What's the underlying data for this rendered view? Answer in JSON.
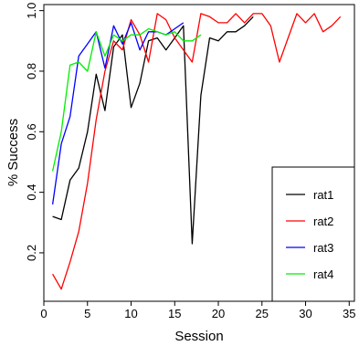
{
  "chart_data": {
    "type": "line",
    "title": "",
    "xlabel": "Session",
    "ylabel": "% Success",
    "xlim": [
      0,
      35.6
    ],
    "ylim": [
      0.04,
      1.02
    ],
    "x_ticks": [
      0,
      5,
      10,
      15,
      20,
      25,
      30,
      35
    ],
    "y_ticks": [
      0.2,
      0.4,
      0.6,
      0.8,
      1.0
    ],
    "y_tick_labels": [
      "0.2",
      "0.4",
      "0.6",
      "0.8",
      "1.0"
    ],
    "legend_position": "bottom-right",
    "series": [
      {
        "name": "rat1",
        "color": "#000000",
        "x": [
          1,
          2,
          3,
          4,
          5,
          6,
          7,
          8,
          9,
          10,
          11,
          12,
          13,
          14,
          15,
          16,
          17,
          18,
          19,
          20,
          21,
          22,
          23,
          24
        ],
        "y": [
          0.32,
          0.31,
          0.44,
          0.48,
          0.6,
          0.79,
          0.67,
          0.88,
          0.92,
          0.68,
          0.76,
          0.9,
          0.91,
          0.87,
          0.91,
          0.95,
          0.23,
          0.72,
          0.91,
          0.9,
          0.93,
          0.93,
          0.95,
          0.98
        ]
      },
      {
        "name": "rat2",
        "color": "#ff0000",
        "x": [
          1,
          2,
          3,
          4,
          5,
          6,
          7,
          8,
          9,
          10,
          11,
          12,
          13,
          14,
          15,
          16,
          17,
          18,
          19,
          20,
          21,
          22,
          23,
          24,
          25,
          26,
          27,
          28,
          29,
          30,
          31,
          32,
          33,
          34
        ],
        "y": [
          0.13,
          0.08,
          0.17,
          0.27,
          0.43,
          0.64,
          0.8,
          0.9,
          0.87,
          0.97,
          0.92,
          0.83,
          0.99,
          0.97,
          0.91,
          0.87,
          0.83,
          0.99,
          0.98,
          0.96,
          0.96,
          0.99,
          0.96,
          0.99,
          0.99,
          0.95,
          0.83,
          0.91,
          0.99,
          0.96,
          0.99,
          0.93,
          0.95,
          0.98
        ]
      },
      {
        "name": "rat3",
        "color": "#0000ff",
        "x": [
          1,
          2,
          3,
          4,
          5,
          6,
          7,
          8,
          9,
          10,
          11,
          12,
          13,
          14,
          15,
          16
        ],
        "y": [
          0.36,
          0.56,
          0.65,
          0.85,
          0.89,
          0.93,
          0.81,
          0.95,
          0.89,
          0.96,
          0.87,
          0.93,
          0.93,
          0.92,
          0.94,
          0.96
        ]
      },
      {
        "name": "rat4",
        "color": "#00ee00",
        "x": [
          1,
          2,
          3,
          4,
          5,
          6,
          7,
          8,
          9,
          10,
          11,
          12,
          13,
          14,
          15,
          16,
          17,
          18
        ],
        "y": [
          0.47,
          0.6,
          0.82,
          0.83,
          0.8,
          0.93,
          0.85,
          0.92,
          0.9,
          0.92,
          0.92,
          0.94,
          0.93,
          0.92,
          0.93,
          0.9,
          0.9,
          0.92
        ]
      }
    ]
  }
}
